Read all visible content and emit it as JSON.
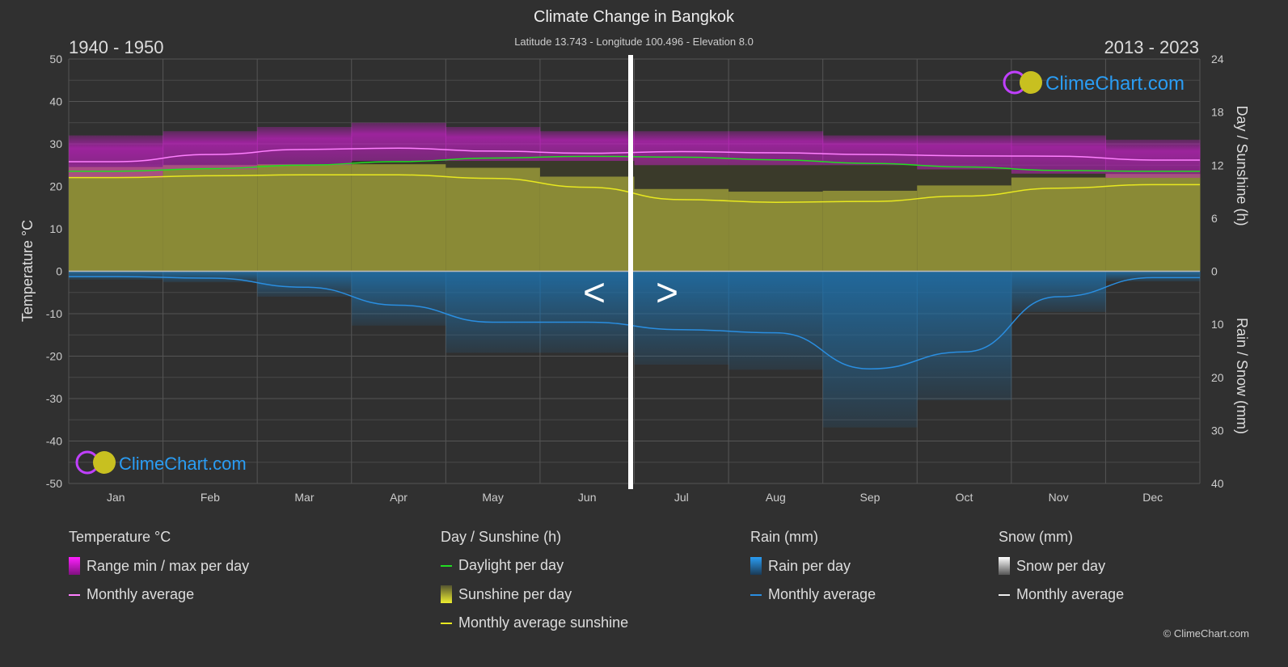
{
  "header": {
    "title": "Climate Change in Bangkok",
    "subtitle": "Latitude 13.743 - Longitude 100.496 - Elevation 8.0",
    "period_left": "1940 - 1950",
    "period_right": "2013 - 2023"
  },
  "chart_data": {
    "type": "line",
    "categories": [
      "Jan",
      "Feb",
      "Mar",
      "Apr",
      "May",
      "Jun",
      "Jul",
      "Aug",
      "Sep",
      "Oct",
      "Nov",
      "Dec"
    ],
    "yleft": {
      "label": "Temperature °C",
      "range": [
        -50,
        50
      ],
      "ticks": [
        "50",
        "40",
        "30",
        "20",
        "10",
        "0",
        "-10",
        "-20",
        "-30",
        "-40",
        "-50"
      ]
    },
    "yright_top": {
      "label": "Day / Sunshine (h)",
      "range": [
        0,
        24
      ],
      "ticks": [
        "24",
        "18",
        "12",
        "6",
        "0"
      ]
    },
    "yright_bottom": {
      "label": "Rain / Snow (mm)",
      "range": [
        0,
        40
      ],
      "ticks": [
        "0",
        "10",
        "20",
        "30",
        "40"
      ]
    },
    "grid": true,
    "series": [
      {
        "name": "Monthly average",
        "kind": "temperature",
        "color": "#ff80ff",
        "values": [
          25.8,
          27.5,
          28.7,
          29.0,
          28.3,
          27.8,
          28.2,
          27.9,
          27.5,
          27.2,
          27.1,
          26.2
        ]
      },
      {
        "name": "Range min / max per day",
        "kind": "temperature-range",
        "color": "#cc22cc",
        "max": [
          32,
          33,
          34,
          35,
          34,
          33,
          33,
          33,
          32,
          32,
          32,
          31
        ],
        "min": [
          22,
          24,
          25,
          26,
          26,
          26,
          25,
          25,
          25,
          24,
          23,
          22
        ]
      },
      {
        "name": "Daylight per day",
        "kind": "hours",
        "color": "#22dd22",
        "values": [
          11.3,
          11.6,
          12.0,
          12.4,
          12.8,
          13.0,
          12.9,
          12.6,
          12.2,
          11.8,
          11.4,
          11.3
        ]
      },
      {
        "name": "Monthly average sunshine",
        "kind": "hours",
        "color": "#e8e820",
        "values": [
          10.6,
          10.8,
          10.9,
          10.9,
          10.5,
          9.5,
          8.1,
          7.8,
          7.9,
          8.5,
          9.4,
          9.8
        ]
      },
      {
        "name": "Monthly average",
        "kind": "rain",
        "color": "#2a8ee0",
        "values": [
          1.0,
          1.3,
          3.0,
          6.4,
          9.6,
          9.6,
          11.0,
          11.6,
          18.4,
          15.2,
          4.8,
          1.2
        ]
      }
    ]
  },
  "nav": {
    "prev": "<",
    "next": ">"
  },
  "logo": "ClimeChart.com",
  "legend": {
    "temperature": {
      "title": "Temperature °C",
      "items": [
        "Range min / max per day",
        "Monthly average"
      ]
    },
    "sunshine": {
      "title": "Day / Sunshine (h)",
      "items": [
        "Daylight per day",
        "Sunshine per day",
        "Monthly average sunshine"
      ]
    },
    "rain": {
      "title": "Rain (mm)",
      "items": [
        "Rain per day",
        "Monthly average"
      ]
    },
    "snow": {
      "title": "Snow (mm)",
      "items": [
        "Snow per day",
        "Monthly average"
      ]
    }
  },
  "copyright": "© ClimeChart.com"
}
